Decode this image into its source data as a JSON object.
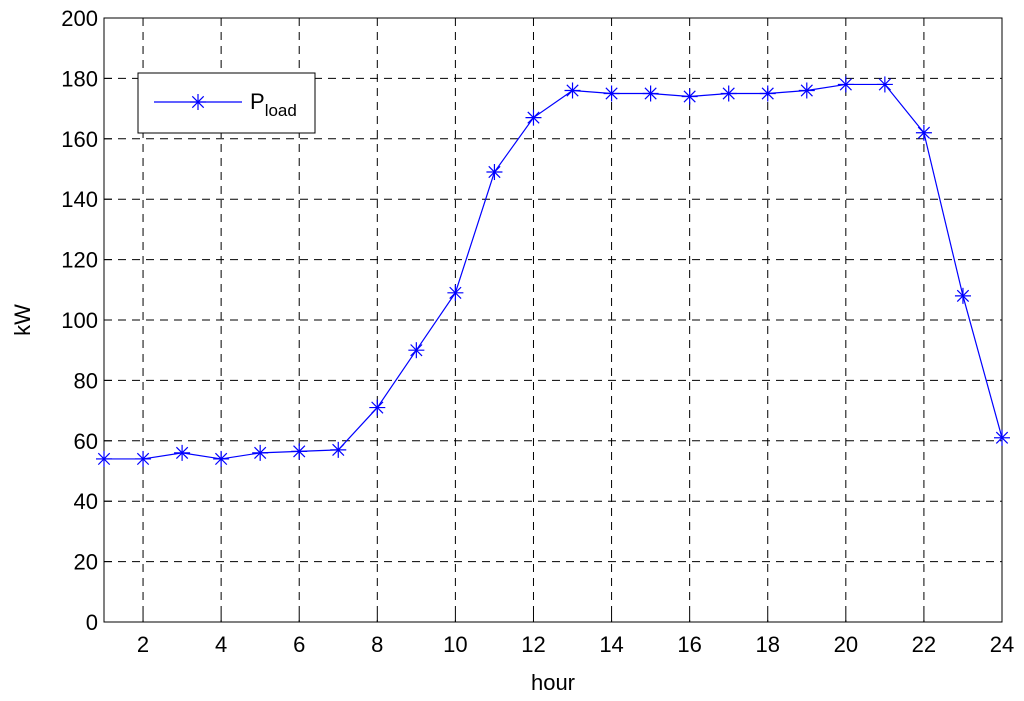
{
  "chart_data": {
    "type": "line",
    "xlabel": "hour",
    "ylabel": "kW",
    "x": [
      1,
      2,
      3,
      4,
      5,
      6,
      7,
      8,
      9,
      10,
      11,
      12,
      13,
      14,
      15,
      16,
      17,
      18,
      19,
      20,
      21,
      22,
      23,
      24
    ],
    "series": [
      {
        "name": "Pload",
        "color": "#0000ff",
        "values": [
          54,
          54,
          56,
          54,
          56,
          56.5,
          57,
          71,
          90,
          109,
          149,
          167,
          176,
          175,
          175,
          174,
          175,
          175,
          176,
          178,
          178,
          162,
          108,
          61
        ]
      }
    ],
    "xlim": [
      1,
      24
    ],
    "xticks": [
      2,
      4,
      6,
      8,
      10,
      12,
      14,
      16,
      18,
      20,
      22,
      24
    ],
    "ylim": [
      0,
      200
    ],
    "yticks": [
      0,
      20,
      40,
      60,
      80,
      100,
      120,
      140,
      160,
      180,
      200
    ],
    "grid": true,
    "legend": "upper left"
  }
}
